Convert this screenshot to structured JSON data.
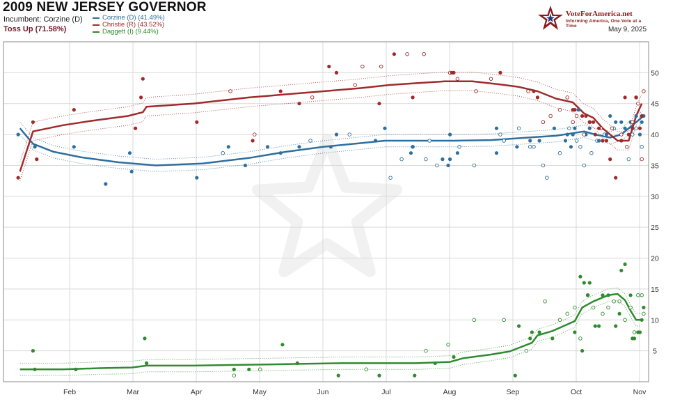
{
  "header": {
    "title": "2009 NEW JERSEY GOVERNOR",
    "incumbent": "Incumbent: Corzine (D)",
    "status": "Toss Up (71.58%)",
    "date": "May 9, 2025"
  },
  "logo": {
    "name": "VoteForAmerica.net",
    "tagline": "Informing America, One Vote at a Time"
  },
  "legend": [
    {
      "label": "Corzine (D) (41.49%)",
      "color": "#2e6f9e"
    },
    {
      "label": "Christie (R) (43.52%)",
      "color": "#a02a2a"
    },
    {
      "label": "Daggett (I) (9.44%)",
      "color": "#2e8b2e"
    }
  ],
  "chart_data": {
    "type": "line",
    "x_ticks": [
      "Feb",
      "Mar",
      "Apr",
      "May",
      "Jun",
      "Jul",
      "Aug",
      "Sep",
      "Oct",
      "Nov"
    ],
    "y_ticks": [
      5,
      10,
      15,
      20,
      25,
      30,
      35,
      40,
      45,
      50
    ],
    "ylim": [
      0,
      55
    ],
    "grid": true,
    "series": [
      {
        "name": "Corzine (D)",
        "color": "#2e6f9e",
        "trend": [
          [
            0.7,
            41
          ],
          [
            1.4,
            38.5
          ],
          [
            2.5,
            37.2
          ],
          [
            4,
            36.3
          ],
          [
            6,
            35.5
          ],
          [
            8,
            35
          ],
          [
            10.5,
            35.3
          ],
          [
            13,
            36.2
          ],
          [
            15,
            37.2
          ],
          [
            17,
            38
          ],
          [
            19,
            38.6
          ],
          [
            20.3,
            39
          ],
          [
            22,
            39
          ],
          [
            24,
            39
          ],
          [
            26,
            39.1
          ],
          [
            28,
            39.5
          ],
          [
            29.5,
            39.8
          ],
          [
            31,
            40.5
          ],
          [
            31.6,
            40
          ],
          [
            32.4,
            39.5
          ],
          [
            33,
            40
          ],
          [
            33.4,
            41
          ],
          [
            34.2,
            43
          ]
        ],
        "band": 1,
        "points": [
          [
            0.6,
            40
          ],
          [
            1.5,
            38
          ],
          [
            3.6,
            38
          ],
          [
            5.3,
            32
          ],
          [
            6.7,
            34
          ],
          [
            6.6,
            37
          ],
          [
            10.2,
            33
          ],
          [
            11.9,
            38
          ],
          [
            12.8,
            35
          ],
          [
            14,
            38
          ],
          [
            14.7,
            37
          ],
          [
            15.7,
            38
          ],
          [
            17.4,
            38
          ],
          [
            17.7,
            40
          ],
          [
            19.8,
            39
          ],
          [
            20.3,
            41
          ],
          [
            21.7,
            37
          ],
          [
            21.8,
            38
          ],
          [
            23.4,
            36
          ],
          [
            23.7,
            35
          ],
          [
            23.8,
            36
          ],
          [
            23.8,
            40
          ],
          [
            24.2,
            37
          ],
          [
            26.3,
            41
          ],
          [
            26.3,
            37
          ],
          [
            27.4,
            38
          ],
          [
            28.1,
            39
          ],
          [
            28.6,
            39
          ],
          [
            29.4,
            41
          ],
          [
            30,
            39
          ],
          [
            30.1,
            40
          ],
          [
            30.3,
            38
          ],
          [
            30.4,
            40
          ],
          [
            30.5,
            41
          ],
          [
            30.7,
            44
          ],
          [
            31.1,
            40
          ],
          [
            31.3,
            41
          ],
          [
            31.8,
            39
          ],
          [
            32.2,
            40
          ],
          [
            32.4,
            43
          ],
          [
            32.7,
            42
          ],
          [
            33,
            42
          ],
          [
            33.2,
            41
          ],
          [
            33.5,
            42
          ],
          [
            33.8,
            43
          ],
          [
            34,
            40
          ],
          [
            34.1,
            42
          ],
          [
            34.2,
            43
          ]
        ],
        "open_points": [
          [
            11.6,
            37
          ],
          [
            16.3,
            39
          ],
          [
            18.4,
            40
          ],
          [
            20.6,
            33
          ],
          [
            21.2,
            36
          ],
          [
            21.8,
            38
          ],
          [
            22.5,
            36
          ],
          [
            22.7,
            39
          ],
          [
            23.1,
            35
          ],
          [
            24.3,
            38
          ],
          [
            25.1,
            35
          ],
          [
            26.5,
            40
          ],
          [
            26.7,
            39
          ],
          [
            27.5,
            41
          ],
          [
            28.1,
            38
          ],
          [
            28.3,
            38
          ],
          [
            28.8,
            35
          ],
          [
            29,
            33
          ],
          [
            29.7,
            37
          ],
          [
            30.2,
            41
          ],
          [
            30.6,
            39
          ],
          [
            30.8,
            38
          ],
          [
            31,
            35
          ],
          [
            31.4,
            37
          ],
          [
            31.7,
            39
          ],
          [
            32.1,
            40
          ],
          [
            32.6,
            41
          ],
          [
            33.4,
            36
          ],
          [
            33.6,
            40
          ],
          [
            33.8,
            41
          ],
          [
            34.1,
            38
          ]
        ]
      },
      {
        "name": "Christie (R)",
        "color": "#a02a2a",
        "trend": [
          [
            0.7,
            34
          ],
          [
            1.4,
            40.5
          ],
          [
            3,
            41.5
          ],
          [
            4.5,
            42.2
          ],
          [
            6.5,
            43
          ],
          [
            7.3,
            43.6
          ],
          [
            7.5,
            44.5
          ],
          [
            10,
            45
          ],
          [
            13,
            46
          ],
          [
            15,
            46.5
          ],
          [
            17,
            47
          ],
          [
            19,
            47.5
          ],
          [
            20.5,
            48
          ],
          [
            22,
            48.3
          ],
          [
            23.5,
            48.6
          ],
          [
            25,
            48.6
          ],
          [
            26.5,
            48.1
          ],
          [
            27.5,
            47.7
          ],
          [
            28.5,
            47
          ],
          [
            29.5,
            45.8
          ],
          [
            30.4,
            45.2
          ],
          [
            31,
            43.4
          ],
          [
            31.5,
            42.7
          ],
          [
            32,
            41
          ],
          [
            32.4,
            40
          ],
          [
            32.8,
            39
          ],
          [
            33.4,
            39
          ],
          [
            33.8,
            43
          ],
          [
            34.1,
            45
          ]
        ],
        "band": 1.5,
        "points": [
          [
            0.6,
            33
          ],
          [
            1.4,
            42
          ],
          [
            1.6,
            36
          ],
          [
            3.6,
            44
          ],
          [
            6.9,
            41
          ],
          [
            7.2,
            46
          ],
          [
            7.3,
            49
          ],
          [
            10.2,
            42
          ],
          [
            13.2,
            39
          ],
          [
            14.7,
            47
          ],
          [
            15.7,
            45
          ],
          [
            17.3,
            51
          ],
          [
            17.7,
            50
          ],
          [
            20,
            45
          ],
          [
            20.8,
            53
          ],
          [
            21.8,
            46
          ],
          [
            23.9,
            50
          ],
          [
            24,
            50
          ],
          [
            26.5,
            50
          ],
          [
            28.3,
            47
          ],
          [
            28.5,
            46
          ],
          [
            30.4,
            44
          ],
          [
            30.5,
            44
          ],
          [
            30.9,
            43
          ],
          [
            31.1,
            43
          ],
          [
            31.3,
            42
          ],
          [
            31.5,
            42
          ],
          [
            31.6,
            40
          ],
          [
            31.8,
            41
          ],
          [
            32,
            39
          ],
          [
            32.2,
            39
          ],
          [
            32.4,
            36
          ],
          [
            32.7,
            33
          ],
          [
            33,
            39
          ],
          [
            33.2,
            46
          ],
          [
            33.4,
            40
          ],
          [
            33.6,
            41
          ],
          [
            33.8,
            46
          ],
          [
            34,
            41
          ],
          [
            34.1,
            43
          ]
        ],
        "open_points": [
          [
            12,
            47
          ],
          [
            13.3,
            40
          ],
          [
            16.4,
            46
          ],
          [
            18.7,
            48
          ],
          [
            19.1,
            51
          ],
          [
            20.1,
            51
          ],
          [
            21.5,
            53
          ],
          [
            22.4,
            53
          ],
          [
            23.8,
            50
          ],
          [
            24.2,
            49
          ],
          [
            25.2,
            47
          ],
          [
            26,
            49
          ],
          [
            28,
            47
          ],
          [
            28.8,
            42
          ],
          [
            29.2,
            43
          ],
          [
            29.7,
            44
          ],
          [
            30.1,
            46
          ],
          [
            30.4,
            42
          ],
          [
            30.6,
            43
          ],
          [
            31,
            40
          ],
          [
            31.3,
            42
          ],
          [
            31.9,
            41
          ],
          [
            32.5,
            41
          ],
          [
            33,
            40
          ],
          [
            33.3,
            38
          ],
          [
            33.6,
            42
          ],
          [
            33.8,
            46
          ],
          [
            33.9,
            45
          ],
          [
            34.1,
            36
          ],
          [
            34.2,
            47
          ]
        ]
      },
      {
        "name": "Daggett (I)",
        "color": "#2e8b2e",
        "trend": [
          [
            0.7,
            2
          ],
          [
            3,
            2
          ],
          [
            5,
            2.2
          ],
          [
            6.7,
            2.3
          ],
          [
            7.5,
            2.6
          ],
          [
            10,
            2.6
          ],
          [
            12,
            2.7
          ],
          [
            14,
            2.8
          ],
          [
            16,
            2.9
          ],
          [
            18,
            3
          ],
          [
            20,
            3
          ],
          [
            22,
            3
          ],
          [
            23.8,
            3.2
          ],
          [
            24.5,
            3.8
          ],
          [
            26,
            4.4
          ],
          [
            27,
            4.9
          ],
          [
            28.2,
            6.3
          ],
          [
            28.5,
            7.5
          ],
          [
            29.3,
            8.2
          ],
          [
            30.5,
            9.8
          ],
          [
            30.9,
            12
          ],
          [
            31.5,
            13
          ],
          [
            32.3,
            14
          ],
          [
            32.8,
            14.2
          ],
          [
            33.2,
            13.2
          ],
          [
            33.5,
            11.5
          ],
          [
            33.8,
            10
          ],
          [
            34.1,
            10
          ]
        ],
        "band": 1,
        "points": [
          [
            1.4,
            5
          ],
          [
            1.5,
            2
          ],
          [
            3.7,
            2
          ],
          [
            7.4,
            7
          ],
          [
            7.5,
            3
          ],
          [
            12.2,
            2
          ],
          [
            13,
            2
          ],
          [
            14.8,
            6
          ],
          [
            15.6,
            3
          ],
          [
            17.8,
            1
          ],
          [
            20,
            1
          ],
          [
            21.9,
            1
          ],
          [
            23,
            3
          ],
          [
            24,
            4
          ],
          [
            27.3,
            1
          ],
          [
            27.5,
            9
          ],
          [
            28.1,
            7
          ],
          [
            28.2,
            8
          ],
          [
            28.6,
            8
          ],
          [
            29.3,
            7
          ],
          [
            30.5,
            8
          ],
          [
            30.8,
            17
          ],
          [
            30.9,
            5
          ],
          [
            31,
            16
          ],
          [
            31.2,
            14
          ],
          [
            31.3,
            16
          ],
          [
            31.6,
            9
          ],
          [
            31.8,
            9
          ],
          [
            32,
            14
          ],
          [
            32.3,
            14
          ],
          [
            32.7,
            9
          ],
          [
            32.9,
            11
          ],
          [
            33,
            18
          ],
          [
            33.2,
            19
          ],
          [
            33.5,
            14
          ],
          [
            33.6,
            7
          ],
          [
            33.7,
            7
          ],
          [
            33.9,
            8
          ],
          [
            34,
            8
          ],
          [
            34.1,
            10
          ],
          [
            34.2,
            12
          ]
        ],
        "open_points": [
          [
            12.2,
            1
          ],
          [
            13.6,
            2
          ],
          [
            19.3,
            2
          ],
          [
            22.5,
            5
          ],
          [
            23.7,
            6
          ],
          [
            25.1,
            10
          ],
          [
            26.7,
            10
          ],
          [
            27.9,
            5
          ],
          [
            28.9,
            13
          ],
          [
            29.7,
            10
          ],
          [
            30.1,
            11
          ],
          [
            30.5,
            12
          ],
          [
            30.8,
            7
          ],
          [
            31.2,
            14
          ],
          [
            31.5,
            12
          ],
          [
            32,
            11
          ],
          [
            32.3,
            12
          ],
          [
            32.6,
            13
          ],
          [
            32.9,
            13
          ],
          [
            33.2,
            10
          ],
          [
            33.5,
            12
          ],
          [
            33.7,
            8
          ],
          [
            33.9,
            14
          ],
          [
            34.1,
            14
          ],
          [
            34.2,
            11
          ]
        ]
      }
    ]
  }
}
